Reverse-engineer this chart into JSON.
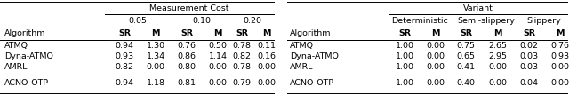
{
  "fig_width": 6.4,
  "fig_height": 1.07,
  "dpi": 100,
  "left_title": "Measurement Cost",
  "left_subtitle_cols": [
    "0.05",
    "0.10",
    "0.20"
  ],
  "left_header_alg": "Algorithm",
  "left_header_sr_m": [
    "SR",
    "M",
    "SR",
    "M",
    "SR",
    "M"
  ],
  "left_rows": [
    [
      "ATMQ",
      "0.94",
      "1.30",
      "0.76",
      "0.50",
      "0.78",
      "0.11"
    ],
    [
      "Dyna-ATMQ",
      "0.93",
      "1.34",
      "0.86",
      "1.14",
      "0.82",
      "0.16"
    ],
    [
      "AMRL",
      "0.82",
      "0.00",
      "0.80",
      "0.00",
      "0.78",
      "0.00"
    ],
    [
      "ACNO-OTP",
      "0.94",
      "1.18",
      "0.81",
      "0.00",
      "0.79",
      "0.00"
    ]
  ],
  "right_title": "Variant",
  "right_subtitle_cols": [
    "Deterministic",
    "Semi-slippery",
    "Slippery"
  ],
  "right_header_alg": "Algorithm",
  "right_header_sr_m": [
    "SR",
    "M",
    "SR",
    "M",
    "SR",
    "M"
  ],
  "right_rows": [
    [
      "ATMQ",
      "1.00",
      "0.00",
      "0.75",
      "2.65",
      "0.02",
      "0.76"
    ],
    [
      "Dyna-ATMQ",
      "1.00",
      "0.00",
      "0.65",
      "2.95",
      "0.03",
      "0.93"
    ],
    [
      "AMRL",
      "1.00",
      "0.00",
      "0.41",
      "0.00",
      "0.03",
      "0.00"
    ],
    [
      "ACNO-OTP",
      "1.00",
      "0.00",
      "0.40",
      "0.00",
      "0.04",
      "0.00"
    ]
  ],
  "font_size": 6.8,
  "font_family": "DejaVu Sans",
  "background": "#ffffff",
  "line_color": "#000000"
}
